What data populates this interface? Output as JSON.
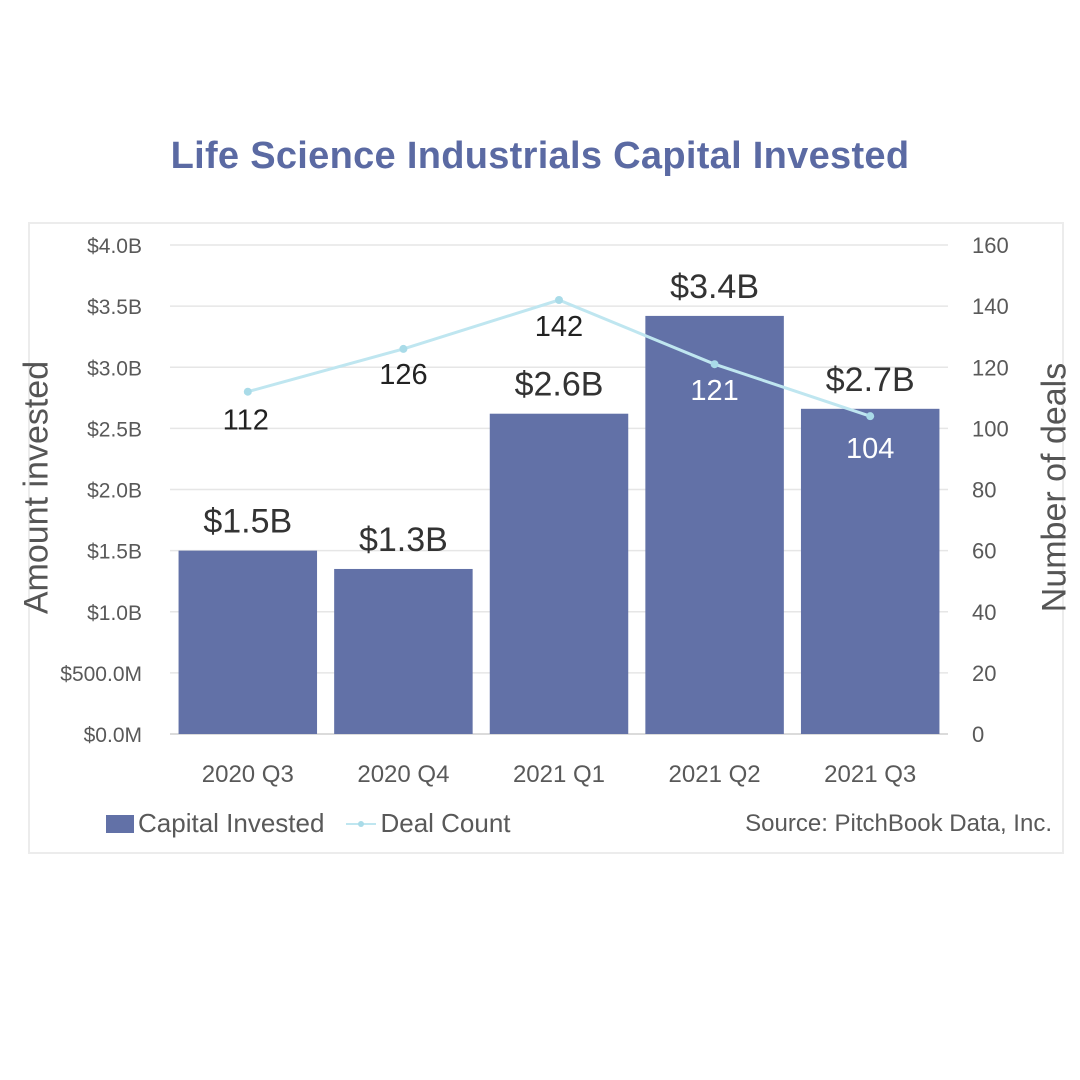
{
  "title": "Life Science Industrials Capital Invested",
  "chart_data": {
    "type": "bar",
    "categories": [
      "2020 Q3",
      "2020 Q4",
      "2021 Q1",
      "2021 Q2",
      "2021 Q3"
    ],
    "series": [
      {
        "name": "Capital Invested",
        "type": "bar",
        "axis": "left",
        "values": [
          1.5,
          1.35,
          2.62,
          3.42,
          2.66
        ],
        "labels": [
          "$1.5B",
          "$1.3B",
          "$2.6B",
          "$3.4B",
          "$2.7B"
        ],
        "color": "#6271a7"
      },
      {
        "name": "Deal Count",
        "type": "line",
        "axis": "right",
        "values": [
          112,
          126,
          142,
          121,
          104
        ],
        "labels": [
          "112",
          "126",
          "142",
          "121",
          "104"
        ],
        "color": "#bfe6f0"
      }
    ],
    "ylabel": "Amount invested",
    "y2label": "Number of deals",
    "ylim": [
      0,
      4.0
    ],
    "y2lim": [
      0,
      160
    ],
    "yticks": [
      "$0.0M",
      "$500.0M",
      "$1.0B",
      "$1.5B",
      "$2.0B",
      "$2.5B",
      "$3.0B",
      "$3.5B",
      "$4.0B"
    ],
    "y2ticks": [
      "0",
      "20",
      "40",
      "60",
      "80",
      "100",
      "120",
      "140",
      "160"
    ],
    "grid": true,
    "legend": "bottom-left",
    "source": "Source: PitchBook Data, Inc."
  }
}
